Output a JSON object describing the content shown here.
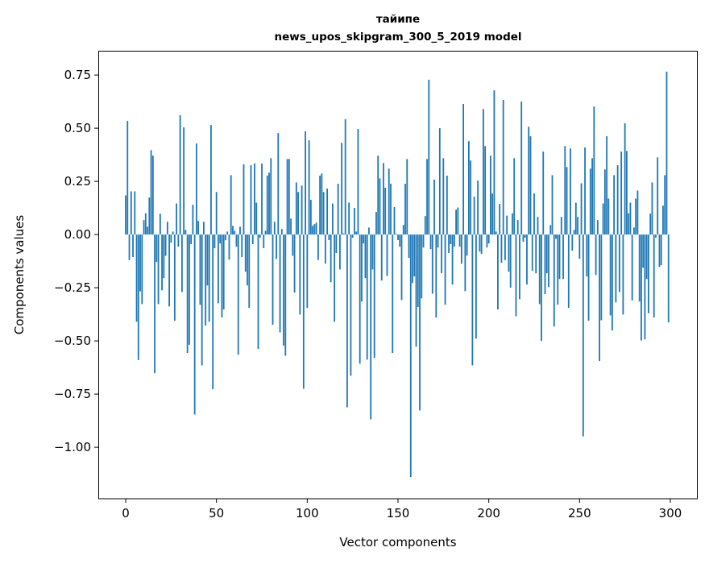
{
  "chart_data": {
    "type": "bar",
    "title": "тайипе",
    "subtitle": "news_upos_skipgram_300_5_2019 model",
    "xlabel": "Vector components",
    "ylabel": "Components values",
    "xlim": [
      -15.1,
      315.1
    ],
    "ylim": [
      -1.242,
      0.864
    ],
    "xticks": [
      0,
      50,
      100,
      150,
      200,
      250,
      300
    ],
    "xtick_labels": [
      "0",
      "50",
      "100",
      "150",
      "200",
      "250",
      "300"
    ],
    "yticks": [
      0.75,
      0.5,
      0.25,
      0,
      -0.25,
      -0.5,
      -0.75,
      -1.0
    ],
    "ytick_labels": [
      "0.75",
      "0.50",
      "0.25",
      "0.00",
      "−0.25",
      "−0.50",
      "−0.75",
      "−1.00"
    ],
    "grid": false,
    "bar_color": "#1f77b4",
    "values": [
      0.184,
      0.534,
      -0.12,
      0.203,
      -0.106,
      0.203,
      -0.41,
      -0.59,
      -0.267,
      -0.327,
      0.068,
      0.1,
      0.037,
      0.174,
      0.397,
      0.371,
      -0.652,
      -0.129,
      -0.327,
      0.098,
      -0.262,
      -0.205,
      -0.1,
      0.06,
      -0.338,
      -0.038,
      0.014,
      -0.405,
      0.146,
      -0.057,
      0.561,
      -0.27,
      0.504,
      0.022,
      -0.557,
      -0.518,
      -0.045,
      0.14,
      -0.846,
      0.428,
      0.064,
      -0.33,
      -0.615,
      0.06,
      -0.428,
      -0.239,
      -0.41,
      0.515,
      -0.727,
      -0.064,
      0.2,
      -0.323,
      -0.042,
      -0.39,
      -0.352,
      -0.027,
      0.014,
      -0.118,
      0.279,
      0.041,
      0.018,
      -0.057,
      -0.565,
      0.037,
      -0.106,
      0.33,
      -0.175,
      -0.239,
      -0.345,
      0.326,
      -0.045,
      0.334,
      0.15,
      -0.538,
      -0.015,
      0.334,
      -0.064,
      0.018,
      0.277,
      0.291,
      0.359,
      -0.424,
      0.06,
      -0.115,
      0.477,
      -0.46,
      0.026,
      -0.523,
      -0.57,
      0.355,
      0.355,
      0.075,
      -0.1,
      -0.273,
      0.245,
      0.2,
      -0.376,
      0.23,
      -0.725,
      0.485,
      -0.345,
      0.443,
      0.163,
      0.041,
      0.049,
      0.056,
      -0.12,
      0.277,
      0.287,
      0.2,
      -0.137,
      0.216,
      -0.026,
      -0.224,
      0.146,
      -0.41,
      -0.087,
      0.239,
      -0.164,
      0.431,
      0.005,
      0.542,
      -0.812,
      0.15,
      -0.664,
      -0.015,
      0.125,
      0.014,
      0.496,
      -0.607,
      -0.315,
      -0.042,
      -0.205,
      -0.588,
      0.033,
      -0.869,
      -0.164,
      -0.58,
      0.106,
      0.371,
      0.264,
      -0.216,
      0.336,
      0.22,
      -0.194,
      0.31,
      0.239,
      -0.557,
      0.129,
      0.004,
      -0.026,
      -0.057,
      -0.308,
      0.045,
      0.239,
      0.355,
      -0.11,
      -1.14,
      -0.228,
      -0.197,
      -0.527,
      -0.341,
      -0.827,
      -0.3,
      -0.061,
      0.087,
      0.355,
      0.728,
      -0.068,
      -0.278,
      0.258,
      -0.39,
      -0.061,
      0.5,
      -0.182,
      0.359,
      -0.33,
      0.277,
      -0.087,
      -0.045,
      -0.235,
      -0.057,
      0.117,
      0.127,
      -0.057,
      -0.137,
      0.614,
      -0.266,
      -0.099,
      0.439,
      0.348,
      -0.615,
      0.178,
      -0.489,
      0.254,
      -0.08,
      -0.091,
      0.59,
      0.416,
      -0.061,
      -0.042,
      0.371,
      0.193,
      0.678,
      0.014,
      -0.352,
      0.144,
      -0.133,
      0.633,
      -0.12,
      0.089,
      -0.175,
      -0.25,
      0.1,
      0.359,
      -0.384,
      0.068,
      -0.304,
      0.625,
      -0.034,
      -0.015,
      -0.235,
      0.507,
      0.462,
      -0.171,
      0.193,
      -0.182,
      0.083,
      -0.327,
      -0.5,
      0.39,
      -0.28,
      -0.182,
      -0.247,
      0.045,
      0.279,
      -0.432,
      -0.02,
      -0.33,
      -0.209,
      0.083,
      -0.209,
      0.416,
      0.317,
      -0.345,
      0.405,
      -0.076,
      0.022,
      0.15,
      0.083,
      -0.114,
      0.241,
      -0.949,
      0.409,
      -0.197,
      -0.405,
      0.31,
      0.359,
      0.602,
      -0.19,
      0.068,
      -0.595,
      -0.403,
      0.146,
      0.306,
      0.462,
      0.169,
      -0.38,
      -0.451,
      0.279,
      -0.319,
      0.326,
      -0.27,
      0.39,
      -0.376,
      0.523,
      0.393,
      0.1,
      0.15,
      -0.31,
      0.033,
      0.169,
      0.207,
      -0.315,
      -0.498,
      -0.156,
      -0.493,
      -0.209,
      -0.37,
      0.098,
      0.245,
      -0.39,
      -0.015,
      0.363,
      -0.152,
      -0.144,
      0.136,
      0.279,
      0.766,
      -0.413
    ]
  }
}
